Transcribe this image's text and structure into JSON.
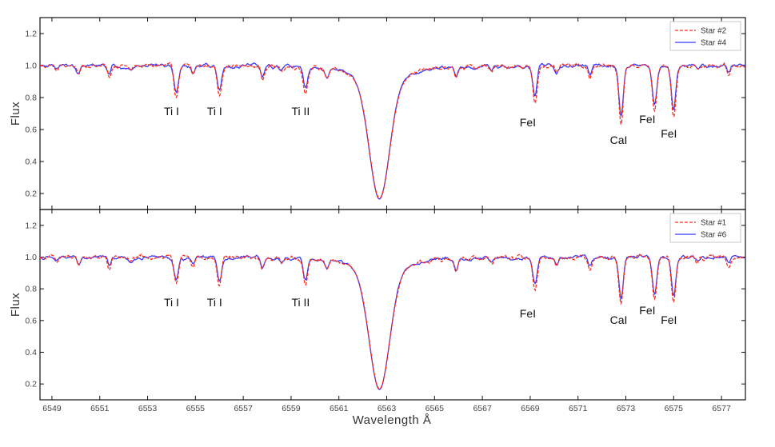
{
  "chart_data": {
    "type": "line",
    "xlabel": "Wavelength  Å",
    "ylabel": "Flux",
    "xlim": [
      6548.5,
      6578
    ],
    "xticks": [
      6549,
      6551,
      6553,
      6555,
      6557,
      6559,
      6561,
      6563,
      6565,
      6567,
      6569,
      6571,
      6573,
      6575,
      6577
    ],
    "ylim": [
      0.1,
      1.3
    ],
    "yticks": [
      0.2,
      0.4,
      0.6,
      0.8,
      1.0,
      1.2
    ],
    "ytick_labels": [
      "0.2",
      "0.4",
      "0.6",
      "0.8",
      "1.0",
      "1.2"
    ],
    "grid": false,
    "legend_position": "top-right",
    "panels": [
      {
        "series": [
          {
            "name": "Star #2",
            "color": "#ff2a1a",
            "style": "dashed",
            "depth_scale": 1.0
          },
          {
            "name": "Star #4",
            "color": "#3a3aff",
            "style": "solid",
            "depth_scale": 0.82
          }
        ],
        "lines": [
          {
            "label": "Ti I",
            "x": 6554.2,
            "depth": 0.19,
            "label_x": 6554.0,
            "label_y": 0.69
          },
          {
            "label": "Ti I",
            "x": 6556.0,
            "depth": 0.18,
            "label_x": 6555.8,
            "label_y": 0.69
          },
          {
            "label": "Ti II",
            "x": 6559.6,
            "depth": 0.16,
            "label_x": 6559.4,
            "label_y": 0.69
          },
          {
            "label": "FeI",
            "x": 6569.2,
            "depth": 0.24,
            "label_x": 6568.9,
            "label_y": 0.62
          },
          {
            "label": "CaI",
            "x": 6572.8,
            "depth": 0.37,
            "label_x": 6572.7,
            "label_y": 0.51
          },
          {
            "label": "FeI",
            "x": 6574.2,
            "depth": 0.29,
            "label_x": 6573.9,
            "label_y": 0.64
          },
          {
            "label": "FeI",
            "x": 6575.0,
            "depth": 0.33,
            "label_x": 6574.8,
            "label_y": 0.55
          }
        ],
        "halpha": {
          "x": 6562.7,
          "min_flux": 0.17
        }
      },
      {
        "series": [
          {
            "name": "Star #1",
            "color": "#ff2a1a",
            "style": "dashed",
            "depth_scale": 1.0
          },
          {
            "name": "Star #6",
            "color": "#3a3aff",
            "style": "solid",
            "depth_scale": 0.85
          }
        ],
        "lines": [
          {
            "label": "Ti I",
            "x": 6554.2,
            "depth": 0.15,
            "label_x": 6554.0,
            "label_y": 0.69
          },
          {
            "label": "Ti I",
            "x": 6556.0,
            "depth": 0.17,
            "label_x": 6555.8,
            "label_y": 0.69
          },
          {
            "label": "Ti II",
            "x": 6559.6,
            "depth": 0.16,
            "label_x": 6559.4,
            "label_y": 0.69
          },
          {
            "label": "FeI",
            "x": 6569.2,
            "depth": 0.21,
            "label_x": 6568.9,
            "label_y": 0.62
          },
          {
            "label": "CaI",
            "x": 6572.8,
            "depth": 0.3,
            "label_x": 6572.7,
            "label_y": 0.58
          },
          {
            "label": "FeI",
            "x": 6574.2,
            "depth": 0.27,
            "label_x": 6573.9,
            "label_y": 0.64
          },
          {
            "label": "FeI",
            "x": 6575.0,
            "depth": 0.29,
            "label_x": 6574.8,
            "label_y": 0.58
          }
        ],
        "halpha": {
          "x": 6562.7,
          "min_flux": 0.17
        }
      }
    ]
  }
}
